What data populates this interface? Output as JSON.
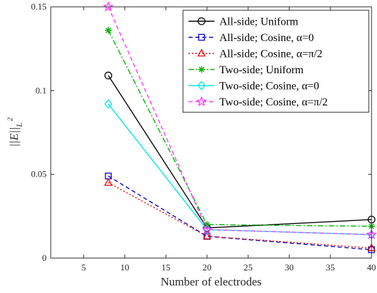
{
  "chart_data": {
    "type": "line",
    "title": "",
    "xlabel": "Number of electrodes",
    "ylabel": "||E||_{L^2}",
    "xlim": [
      1,
      40
    ],
    "ylim": [
      0,
      0.15
    ],
    "xticks": [
      5,
      10,
      15,
      20,
      25,
      30,
      35,
      40
    ],
    "yticks": [
      0,
      0.05,
      0.1,
      0.15
    ],
    "ytick_labels": [
      "0",
      "0.05",
      "0.1",
      "0.15"
    ],
    "grid": false,
    "legend_position": "top-right",
    "x": [
      8,
      20,
      40
    ],
    "series": [
      {
        "name": "All-side; Uniform",
        "values": [
          0.109,
          0.018,
          0.023
        ],
        "color": "#000000",
        "dash": "solid",
        "marker": "circle"
      },
      {
        "name": "All-side; Cosine, α=0",
        "values": [
          0.049,
          0.013,
          0.005
        ],
        "color": "#0000cc",
        "dash": "dashed",
        "marker": "square"
      },
      {
        "name": "All-side; Cosine, α=π/2",
        "values": [
          0.045,
          0.013,
          0.006
        ],
        "color": "#e00000",
        "dash": "dotted",
        "marker": "triangle"
      },
      {
        "name": "Two-side; Uniform",
        "values": [
          0.136,
          0.02,
          0.019
        ],
        "color": "#00b000",
        "dash": "dashdot",
        "marker": "asterisk"
      },
      {
        "name": "Two-side; Cosine, α=0",
        "values": [
          0.092,
          0.017,
          0.014
        ],
        "color": "#00e5e5",
        "dash": "solid",
        "marker": "diamond"
      },
      {
        "name": "Two-side; Cosine, α=π/2",
        "values": [
          0.15,
          0.017,
          0.014
        ],
        "color": "#ff33ff",
        "dash": "dashed",
        "marker": "pentagram"
      }
    ]
  }
}
